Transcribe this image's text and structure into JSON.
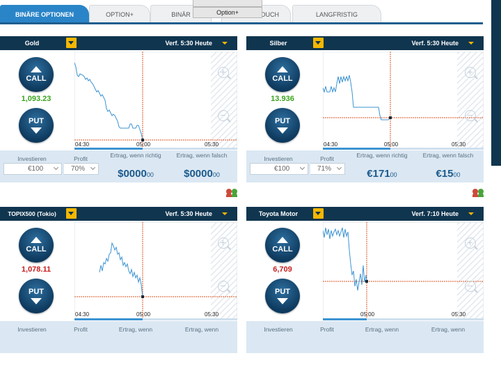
{
  "tabs": [
    {
      "label": "BINÄRE OPTIONEN",
      "active": true
    },
    {
      "label": "OPTION+",
      "active": false
    },
    {
      "label": "BINÄR",
      "active": false
    },
    {
      "label": "OUCH",
      "active": false
    },
    {
      "label": "LANGFRISTIG",
      "active": false
    }
  ],
  "popup": {
    "label": "Option+"
  },
  "labels": {
    "call": "CALL",
    "put": "PUT",
    "invest": "Investieren",
    "profit": "Profit",
    "return_right": "Ertrag, wenn richtig",
    "return_wrong": "Ertrag, wenn falsch",
    "return_header_clipped": "Ertrag, wenn"
  },
  "colors": {
    "header": "#10354f",
    "accent": "#f5b800",
    "active_tab": "#2a85c8",
    "up": "#3aa31d",
    "down": "#c81e1e",
    "line": "#3c93d2"
  },
  "panels": [
    {
      "name": "Gold",
      "expiry": "Verf. 5:30 Heute",
      "price": "1,093.23",
      "direction": "up",
      "t0": "04:30",
      "t1": "05:00",
      "t2": "05:30",
      "invest": "€100",
      "profit": "70%",
      "right_main": "$0000",
      "right_cents": "00",
      "wrong_main": "$0000",
      "wrong_cents": "00"
    },
    {
      "name": "Silber",
      "expiry": "Verf. 5:30 Heute",
      "price": "13.936",
      "direction": "up",
      "t0": "04:30",
      "t1": "05:00",
      "t2": "05:30",
      "invest": "€100",
      "profit": "71%",
      "right_main": "€171",
      "right_cents": "00",
      "wrong_main": "€15",
      "wrong_cents": "00"
    },
    {
      "name": "TOPIX500 (Tokio)",
      "expiry": "Verf. 5:30 Heute",
      "price": "1,078.11",
      "direction": "down",
      "t0": "04:30",
      "t1": "05:00",
      "t2": "05:30"
    },
    {
      "name": "Toyota Motor",
      "expiry": "Verf. 7:10 Heute",
      "price": "6,709",
      "direction": "down",
      "t1": "05:00",
      "t2": "05:30"
    }
  ]
}
